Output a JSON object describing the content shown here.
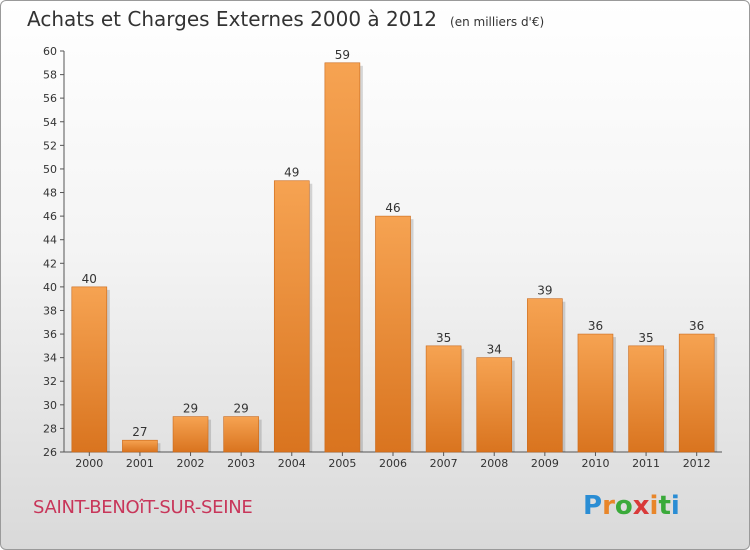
{
  "header": {
    "title": "Achats et Charges Externes 2000 à 2012",
    "subtitle": "(en milliers d'€)"
  },
  "footer": {
    "commune": "SAINT-BENOîT-SUR-SEINE",
    "brand_letters": [
      "P",
      "r",
      "o",
      "x",
      "i",
      "t",
      "i"
    ],
    "brand_colors": [
      "#2a8dd4",
      "#e8862a",
      "#3aaa3a",
      "#d93a3a",
      "#e8862a",
      "#3aaa3a",
      "#2a8dd4"
    ]
  },
  "chart_data": {
    "type": "bar",
    "categories": [
      "2000",
      "2001",
      "2002",
      "2003",
      "2004",
      "2005",
      "2006",
      "2007",
      "2008",
      "2009",
      "2010",
      "2011",
      "2012"
    ],
    "values": [
      40,
      27,
      29,
      29,
      49,
      59,
      46,
      35,
      34,
      39,
      36,
      35,
      36
    ],
    "ylim": [
      26,
      60
    ],
    "yticks": [
      26,
      28,
      30,
      32,
      34,
      36,
      38,
      40,
      42,
      44,
      46,
      48,
      50,
      52,
      54,
      56,
      58,
      60
    ],
    "grid": false,
    "data_labels": true,
    "bar_color_top": "#f6a352",
    "bar_color_bottom": "#d9741f"
  }
}
